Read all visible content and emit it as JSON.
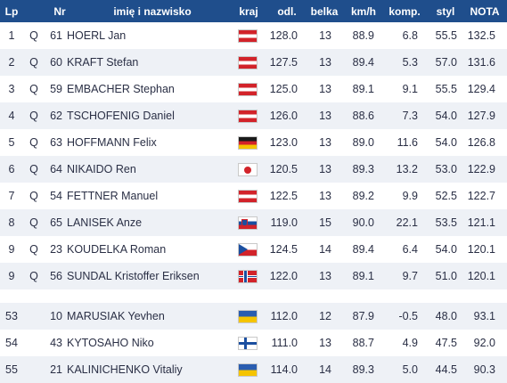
{
  "headers": {
    "lp": "Lp",
    "nr": "Nr",
    "name": "imię i nazwisko",
    "country": "kraj",
    "distance": "odl.",
    "gate": "belka",
    "speed": "km/h",
    "comp": "komp.",
    "style": "styl",
    "nota": "NOTA"
  },
  "rows": [
    {
      "lp": "1",
      "q": "Q",
      "nr": "61",
      "name": "HOERL Jan",
      "flag": "aut",
      "odl": "128.0",
      "belka": "13",
      "kmh": "88.9",
      "komp": "6.8",
      "styl": "55.5",
      "nota": "132.5"
    },
    {
      "lp": "2",
      "q": "Q",
      "nr": "60",
      "name": "KRAFT Stefan",
      "flag": "aut",
      "odl": "127.5",
      "belka": "13",
      "kmh": "89.4",
      "komp": "5.3",
      "styl": "57.0",
      "nota": "131.6"
    },
    {
      "lp": "3",
      "q": "Q",
      "nr": "59",
      "name": "EMBACHER Stephan",
      "flag": "aut",
      "odl": "125.0",
      "belka": "13",
      "kmh": "89.1",
      "komp": "9.1",
      "styl": "55.5",
      "nota": "129.4"
    },
    {
      "lp": "4",
      "q": "Q",
      "nr": "62",
      "name": "TSCHOFENIG Daniel",
      "flag": "aut",
      "odl": "126.0",
      "belka": "13",
      "kmh": "88.6",
      "komp": "7.3",
      "styl": "54.0",
      "nota": "127.9"
    },
    {
      "lp": "5",
      "q": "Q",
      "nr": "63",
      "name": "HOFFMANN Felix",
      "flag": "ger",
      "odl": "123.0",
      "belka": "13",
      "kmh": "89.0",
      "komp": "11.6",
      "styl": "54.0",
      "nota": "126.8"
    },
    {
      "lp": "6",
      "q": "Q",
      "nr": "64",
      "name": "NIKAIDO Ren",
      "flag": "jpn",
      "odl": "120.5",
      "belka": "13",
      "kmh": "89.3",
      "komp": "13.2",
      "styl": "53.0",
      "nota": "122.9"
    },
    {
      "lp": "7",
      "q": "Q",
      "nr": "54",
      "name": "FETTNER Manuel",
      "flag": "aut",
      "odl": "122.5",
      "belka": "13",
      "kmh": "89.2",
      "komp": "9.9",
      "styl": "52.5",
      "nota": "122.7"
    },
    {
      "lp": "8",
      "q": "Q",
      "nr": "65",
      "name": "LANISEK Anze",
      "flag": "slo",
      "odl": "119.0",
      "belka": "15",
      "kmh": "90.0",
      "komp": "22.1",
      "styl": "53.5",
      "nota": "121.1"
    },
    {
      "lp": "9",
      "q": "Q",
      "nr": "23",
      "name": "KOUDELKA Roman",
      "flag": "cze",
      "odl": "124.5",
      "belka": "14",
      "kmh": "89.4",
      "komp": "6.4",
      "styl": "54.0",
      "nota": "120.1"
    },
    {
      "lp": "9",
      "q": "Q",
      "nr": "56",
      "name": "SUNDAL Kristoffer Eriksen",
      "flag": "nor",
      "odl": "122.0",
      "belka": "13",
      "kmh": "89.1",
      "komp": "9.7",
      "styl": "51.0",
      "nota": "120.1"
    }
  ],
  "rows_bottom": [
    {
      "lp": "53",
      "q": "",
      "nr": "10",
      "name": "MARUSIAK Yevhen",
      "flag": "ukr",
      "odl": "112.0",
      "belka": "12",
      "kmh": "87.9",
      "komp": "-0.5",
      "styl": "48.0",
      "nota": "93.1"
    },
    {
      "lp": "54",
      "q": "",
      "nr": "43",
      "name": "KYTOSAHO Niko",
      "flag": "fin",
      "odl": "111.0",
      "belka": "13",
      "kmh": "88.7",
      "komp": "4.9",
      "styl": "47.5",
      "nota": "92.0"
    },
    {
      "lp": "55",
      "q": "",
      "nr": "21",
      "name": "KALINICHENKO Vitaliy",
      "flag": "ukr",
      "odl": "114.0",
      "belka": "14",
      "kmh": "89.3",
      "komp": "5.0",
      "styl": "44.5",
      "nota": "90.3"
    }
  ],
  "colors": {
    "header_bg": "#1f4e8c",
    "row_alt": "#eef1f6",
    "text": "#2a2f45"
  }
}
